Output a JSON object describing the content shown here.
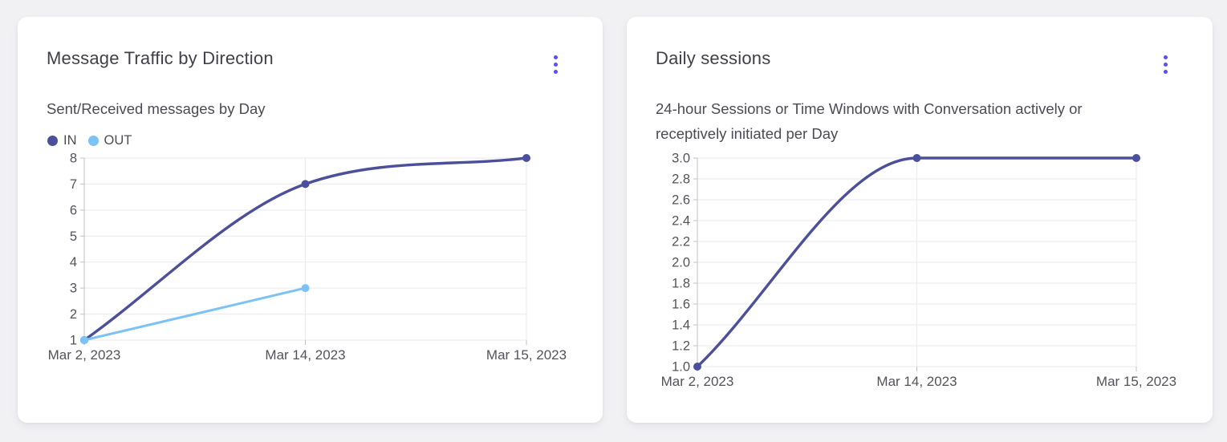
{
  "theme": {
    "page_background": "#f1f1f4",
    "card_background": "#ffffff",
    "accent": "#5a4ff0",
    "title_color": "#40404a",
    "subtitle_color": "#4b4b55",
    "axis_text_color": "#53535c",
    "grid_color": "#e9e9ee",
    "axis_line_color": "#bfbfc8",
    "series_in_color": "#4c509a",
    "series_out_color": "#7cc2f4"
  },
  "cards": [
    {
      "name": "message-traffic-card",
      "menu_icon": "kebab-menu-icon"
    },
    {
      "name": "daily-sessions-card",
      "menu_icon": "kebab-menu-icon"
    }
  ],
  "chart_data": [
    {
      "type": "line",
      "title": "Message Traffic by Direction",
      "subtitle": "Sent/Received messages by Day",
      "categories": [
        "Mar 2, 2023",
        "Mar 14, 2023",
        "Mar 15, 2023"
      ],
      "series": [
        {
          "name": "IN",
          "color": "#4c509a",
          "values": [
            1,
            7,
            8
          ]
        },
        {
          "name": "OUT",
          "color": "#7cc2f4",
          "values": [
            1,
            3,
            null
          ]
        }
      ],
      "xlabel": "",
      "ylabel": "",
      "ylim": [
        1,
        8
      ],
      "ytick_step": 1,
      "ytick_decimals": 0,
      "grid": true,
      "legend": true,
      "legend_position": "top-left",
      "curve": "monotone"
    },
    {
      "type": "line",
      "title": "Daily sessions",
      "subtitle": "24-hour Sessions or Time Windows with Conversation actively or receptively initiated per Day",
      "categories": [
        "Mar 2, 2023",
        "Mar 14, 2023",
        "Mar 15, 2023"
      ],
      "series": [
        {
          "name": "Daily sessions",
          "color": "#4c509a",
          "values": [
            1.0,
            3.0,
            3.0
          ]
        }
      ],
      "xlabel": "",
      "ylabel": "",
      "ylim": [
        1.0,
        3.0
      ],
      "ytick_step": 0.2,
      "ytick_decimals": 1,
      "grid": true,
      "legend": false,
      "curve": "monotone"
    }
  ]
}
